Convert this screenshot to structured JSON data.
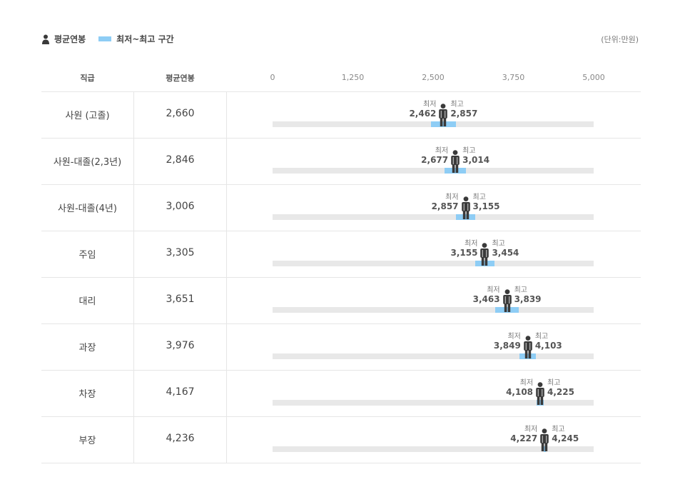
{
  "legend": {
    "avg_label": "평균연봉",
    "range_label": "최저~최고 구간"
  },
  "unit_label": "(단위:만원)",
  "colors": {
    "range": "#8ecdf5",
    "track": "#e8e8e8",
    "person": "#3a3a3a"
  },
  "chart_data": {
    "type": "range-dot",
    "columns": {
      "rank": "직급",
      "avg": "평균연봉"
    },
    "axis": {
      "min": 0,
      "max": 5000,
      "ticks": [
        "0",
        "1,250",
        "2,500",
        "3,750",
        "5,000"
      ]
    },
    "min_label": "최저",
    "max_label": "최고",
    "rows": [
      {
        "rank": "사원 (고졸)",
        "avg": 2660,
        "avg_text": "2,660",
        "min": 2462,
        "min_text": "2,462",
        "max": 2857,
        "max_text": "2,857"
      },
      {
        "rank": "사원-대졸(2,3년)",
        "avg": 2846,
        "avg_text": "2,846",
        "min": 2677,
        "min_text": "2,677",
        "max": 3014,
        "max_text": "3,014"
      },
      {
        "rank": "사원-대졸(4년)",
        "avg": 3006,
        "avg_text": "3,006",
        "min": 2857,
        "min_text": "2,857",
        "max": 3155,
        "max_text": "3,155"
      },
      {
        "rank": "주임",
        "avg": 3305,
        "avg_text": "3,305",
        "min": 3155,
        "min_text": "3,155",
        "max": 3454,
        "max_text": "3,454"
      },
      {
        "rank": "대리",
        "avg": 3651,
        "avg_text": "3,651",
        "min": 3463,
        "min_text": "3,463",
        "max": 3839,
        "max_text": "3,839"
      },
      {
        "rank": "과장",
        "avg": 3976,
        "avg_text": "3,976",
        "min": 3849,
        "min_text": "3,849",
        "max": 4103,
        "max_text": "4,103"
      },
      {
        "rank": "차장",
        "avg": 4167,
        "avg_text": "4,167",
        "min": 4108,
        "min_text": "4,108",
        "max": 4225,
        "max_text": "4,225"
      },
      {
        "rank": "부장",
        "avg": 4236,
        "avg_text": "4,236",
        "min": 4227,
        "min_text": "4,227",
        "max": 4245,
        "max_text": "4,245"
      }
    ]
  }
}
